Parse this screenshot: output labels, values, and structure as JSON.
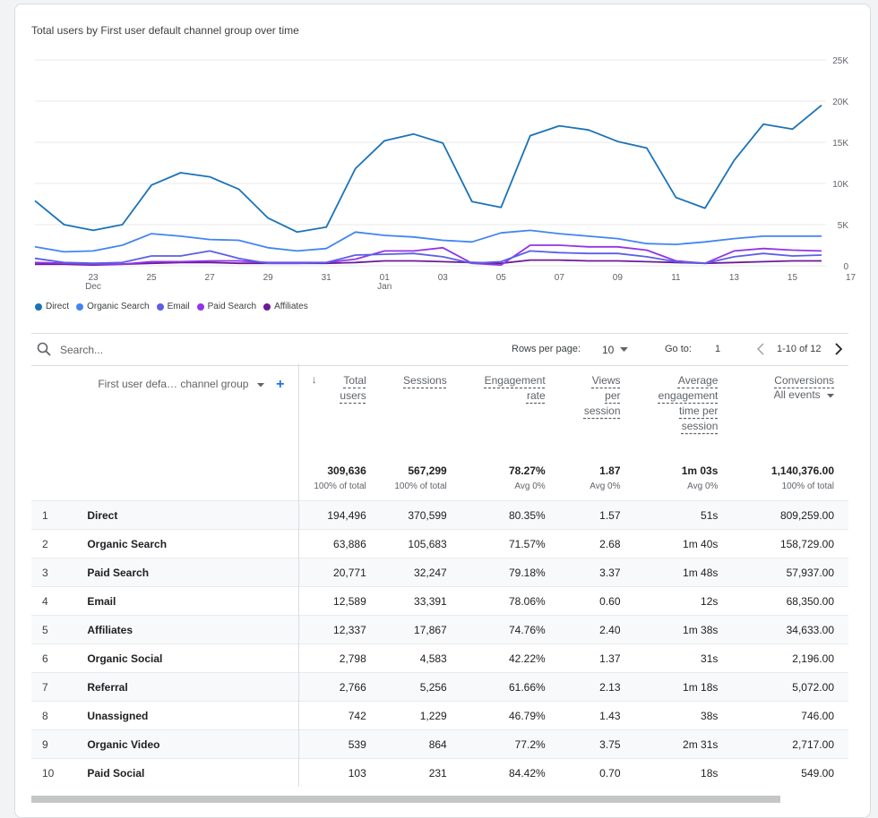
{
  "chart_data": {
    "type": "line",
    "title": "Total users by First user default channel group over time",
    "x_labels": [
      "23\nDec",
      "25",
      "27",
      "29",
      "31",
      "01\nJan",
      "03",
      "05",
      "07",
      "09",
      "11",
      "13",
      "15",
      "17"
    ],
    "y_ticks": [
      "25K",
      "20K",
      "15K",
      "10K",
      "5K",
      "0"
    ],
    "ylim": [
      0,
      25000
    ],
    "legend_position": "bottom-left",
    "series": [
      {
        "name": "Direct",
        "color": "#1a73b8",
        "values": [
          7900,
          5000,
          4300,
          5000,
          9800,
          11300,
          10800,
          9300,
          5800,
          4100,
          4700,
          11800,
          15200,
          16000,
          14900,
          7800,
          7100,
          15800,
          17000,
          16500,
          15100,
          14300,
          8300,
          7000,
          12800,
          17200,
          16600,
          19500
        ]
      },
      {
        "name": "Organic Search",
        "color": "#4285f4",
        "values": [
          2300,
          1700,
          1800,
          2500,
          3900,
          3600,
          3200,
          3100,
          2200,
          1800,
          2100,
          4100,
          3700,
          3500,
          3100,
          2900,
          4000,
          4300,
          3900,
          3600,
          3300,
          2700,
          2600,
          2900,
          3300,
          3600,
          3600,
          3600
        ]
      },
      {
        "name": "Email",
        "color": "#5b5fe6",
        "values": [
          900,
          400,
          300,
          400,
          1200,
          1200,
          1800,
          900,
          300,
          300,
          400,
          1300,
          1400,
          1500,
          1100,
          300,
          500,
          1800,
          1600,
          1500,
          1500,
          1100,
          500,
          300,
          1100,
          1500,
          1200,
          1300
        ]
      },
      {
        "name": "Paid Search",
        "color": "#9334e6",
        "values": [
          400,
          300,
          200,
          200,
          500,
          500,
          600,
          600,
          400,
          400,
          400,
          800,
          1800,
          1800,
          2200,
          300,
          100,
          2500,
          2500,
          2300,
          2300,
          1900,
          600,
          300,
          1800,
          2100,
          1900,
          1800
        ]
      },
      {
        "name": "Affiliates",
        "color": "#6a1b9a",
        "values": [
          200,
          200,
          100,
          200,
          300,
          400,
          400,
          300,
          300,
          300,
          300,
          400,
          600,
          600,
          500,
          400,
          300,
          700,
          700,
          600,
          600,
          500,
          400,
          300,
          400,
          500,
          600,
          600
        ]
      }
    ]
  },
  "search": {
    "placeholder": "Search..."
  },
  "toolbar": {
    "rows_label": "Rows per page:",
    "rows_value": "10",
    "goto_label": "Go to:",
    "goto_value": "1",
    "range": "1-10 of 12"
  },
  "table": {
    "dim_header": "First user defa… channel group",
    "columns": [
      {
        "label": "Total\nusers",
        "total": "309,636",
        "sub": "100% of total"
      },
      {
        "label": "Sessions",
        "total": "567,299",
        "sub": "100% of total"
      },
      {
        "label": "Engagement\nrate",
        "total": "78.27%",
        "sub": "Avg 0%"
      },
      {
        "label": "Views\nper\nsession",
        "total": "1.87",
        "sub": "Avg 0%"
      },
      {
        "label": "Average\nengagement\ntime per\nsession",
        "total": "1m 03s",
        "sub": "Avg 0%"
      },
      {
        "label": "Conversions",
        "sublabel": "All events",
        "total": "1,140,376.00",
        "sub": "100% of total"
      }
    ],
    "rows": [
      {
        "idx": "1",
        "name": "Direct",
        "vals": [
          "194,496",
          "370,599",
          "80.35%",
          "1.57",
          "51s",
          "809,259.00"
        ]
      },
      {
        "idx": "2",
        "name": "Organic Search",
        "vals": [
          "63,886",
          "105,683",
          "71.57%",
          "2.68",
          "1m 40s",
          "158,729.00"
        ]
      },
      {
        "idx": "3",
        "name": "Paid Search",
        "vals": [
          "20,771",
          "32,247",
          "79.18%",
          "3.37",
          "1m 48s",
          "57,937.00"
        ]
      },
      {
        "idx": "4",
        "name": "Email",
        "vals": [
          "12,589",
          "33,391",
          "78.06%",
          "0.60",
          "12s",
          "68,350.00"
        ]
      },
      {
        "idx": "5",
        "name": "Affiliates",
        "vals": [
          "12,337",
          "17,867",
          "74.76%",
          "2.40",
          "1m 38s",
          "34,633.00"
        ]
      },
      {
        "idx": "6",
        "name": "Organic Social",
        "vals": [
          "2,798",
          "4,583",
          "42.22%",
          "1.37",
          "31s",
          "2,196.00"
        ]
      },
      {
        "idx": "7",
        "name": "Referral",
        "vals": [
          "2,766",
          "5,256",
          "61.66%",
          "2.13",
          "1m 18s",
          "5,072.00"
        ]
      },
      {
        "idx": "8",
        "name": "Unassigned",
        "vals": [
          "742",
          "1,229",
          "46.79%",
          "1.43",
          "38s",
          "746.00"
        ]
      },
      {
        "idx": "9",
        "name": "Organic Video",
        "vals": [
          "539",
          "864",
          "77.2%",
          "3.75",
          "2m 31s",
          "2,717.00"
        ]
      },
      {
        "idx": "10",
        "name": "Paid Social",
        "vals": [
          "103",
          "231",
          "84.42%",
          "0.70",
          "18s",
          "549.00"
        ]
      }
    ]
  }
}
